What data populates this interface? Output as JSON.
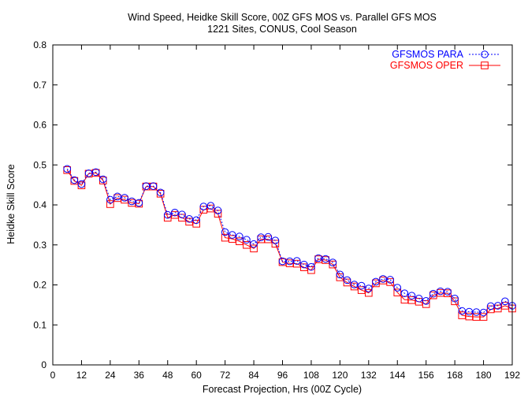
{
  "chart_data": {
    "type": "line",
    "title": "Wind Speed, Heidke Skill Score, 00Z GFS MOS vs. Parallel GFS MOS",
    "subtitle": "1221 Sites, CONUS, Cool Season",
    "xlabel": "Forecast Projection, Hrs (00Z Cycle)",
    "ylabel": "Heidke Skill Score",
    "xlim": [
      0,
      192
    ],
    "ylim": [
      0,
      0.8
    ],
    "xticks": [
      "0",
      "12",
      "24",
      "36",
      "48",
      "60",
      "72",
      "84",
      "96",
      "108",
      "120",
      "132",
      "144",
      "156",
      "168",
      "180",
      "192"
    ],
    "yticks": [
      "0",
      "0.1",
      "0.2",
      "0.3",
      "0.4",
      "0.5",
      "0.6",
      "0.7",
      "0.8"
    ],
    "grid": false,
    "legend_position": "top-right",
    "x": [
      6,
      9,
      12,
      15,
      18,
      21,
      24,
      27,
      30,
      33,
      36,
      39,
      42,
      45,
      48,
      51,
      54,
      57,
      60,
      63,
      66,
      69,
      72,
      75,
      78,
      81,
      84,
      87,
      90,
      93,
      96,
      99,
      102,
      105,
      108,
      111,
      114,
      117,
      120,
      123,
      126,
      129,
      132,
      135,
      138,
      141,
      144,
      147,
      150,
      153,
      156,
      159,
      162,
      165,
      168,
      171,
      174,
      177,
      180,
      183,
      186,
      189,
      192
    ],
    "series": [
      {
        "name": "GFSMOS PARA",
        "color": "#0000ff",
        "line_style": "dotted",
        "marker": "circle",
        "values": [
          0.49,
          0.462,
          0.452,
          0.479,
          0.482,
          0.464,
          0.413,
          0.421,
          0.418,
          0.409,
          0.405,
          0.447,
          0.447,
          0.431,
          0.375,
          0.381,
          0.376,
          0.365,
          0.362,
          0.396,
          0.398,
          0.386,
          0.332,
          0.325,
          0.321,
          0.313,
          0.302,
          0.319,
          0.32,
          0.311,
          0.259,
          0.259,
          0.26,
          0.251,
          0.245,
          0.267,
          0.265,
          0.256,
          0.226,
          0.212,
          0.201,
          0.198,
          0.191,
          0.208,
          0.215,
          0.213,
          0.193,
          0.179,
          0.173,
          0.166,
          0.16,
          0.178,
          0.184,
          0.183,
          0.166,
          0.135,
          0.133,
          0.132,
          0.131,
          0.147,
          0.148,
          0.159,
          0.148
        ]
      },
      {
        "name": "GFSMOS OPER",
        "color": "#ff0000",
        "line_style": "solid",
        "marker": "square",
        "values": [
          0.487,
          0.46,
          0.449,
          0.478,
          0.48,
          0.461,
          0.402,
          0.417,
          0.413,
          0.405,
          0.403,
          0.446,
          0.446,
          0.428,
          0.368,
          0.375,
          0.368,
          0.358,
          0.353,
          0.388,
          0.391,
          0.378,
          0.318,
          0.315,
          0.309,
          0.3,
          0.291,
          0.314,
          0.314,
          0.303,
          0.257,
          0.254,
          0.253,
          0.244,
          0.237,
          0.264,
          0.262,
          0.251,
          0.219,
          0.206,
          0.196,
          0.187,
          0.18,
          0.204,
          0.211,
          0.207,
          0.181,
          0.163,
          0.162,
          0.158,
          0.152,
          0.174,
          0.18,
          0.179,
          0.159,
          0.124,
          0.121,
          0.12,
          0.12,
          0.139,
          0.141,
          0.148,
          0.141
        ]
      }
    ]
  }
}
